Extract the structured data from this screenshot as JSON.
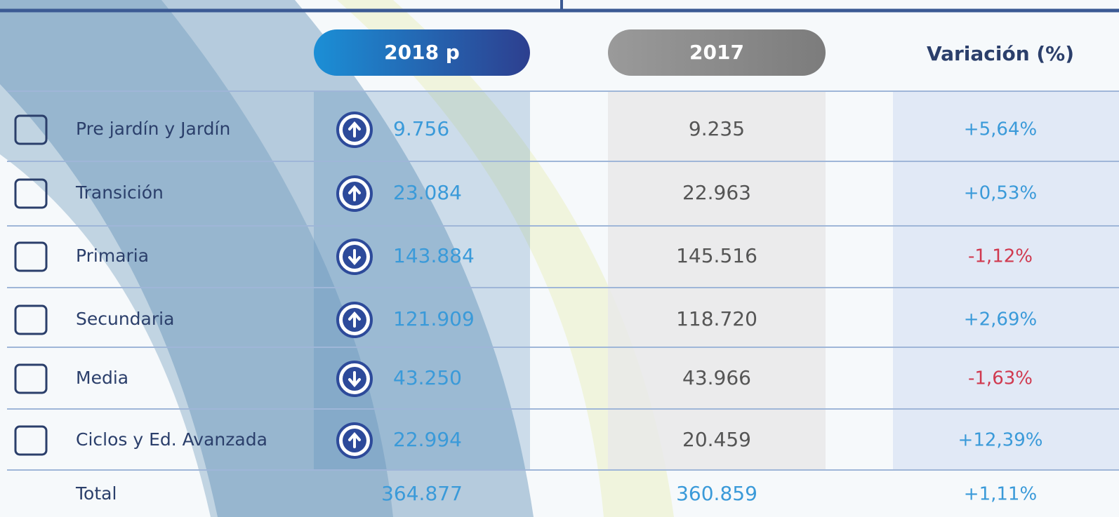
{
  "table": {
    "header": [
      "2018 p",
      "2017",
      "Variación (%)"
    ],
    "rows": [
      [
        "Pre jardín y Jardín",
        "9.756",
        "9.235",
        "+5,64%"
      ],
      [
        "Transición",
        "23.084",
        "22.963",
        "+0,53%"
      ],
      [
        "Primaria",
        "143.884",
        "145.516",
        "-1,12%"
      ],
      [
        "Secundaria",
        "121.909",
        "118.720",
        "+2,69%"
      ],
      [
        "Media",
        "43.250",
        "43.966",
        "-1,63%"
      ],
      [
        "Ciclos y Ed. Avanzada",
        "22.994",
        "20.459",
        "+12,39%"
      ]
    ],
    "total": [
      "Total",
      "364.877",
      "360.859",
      "+1,11%"
    ]
  }
}
